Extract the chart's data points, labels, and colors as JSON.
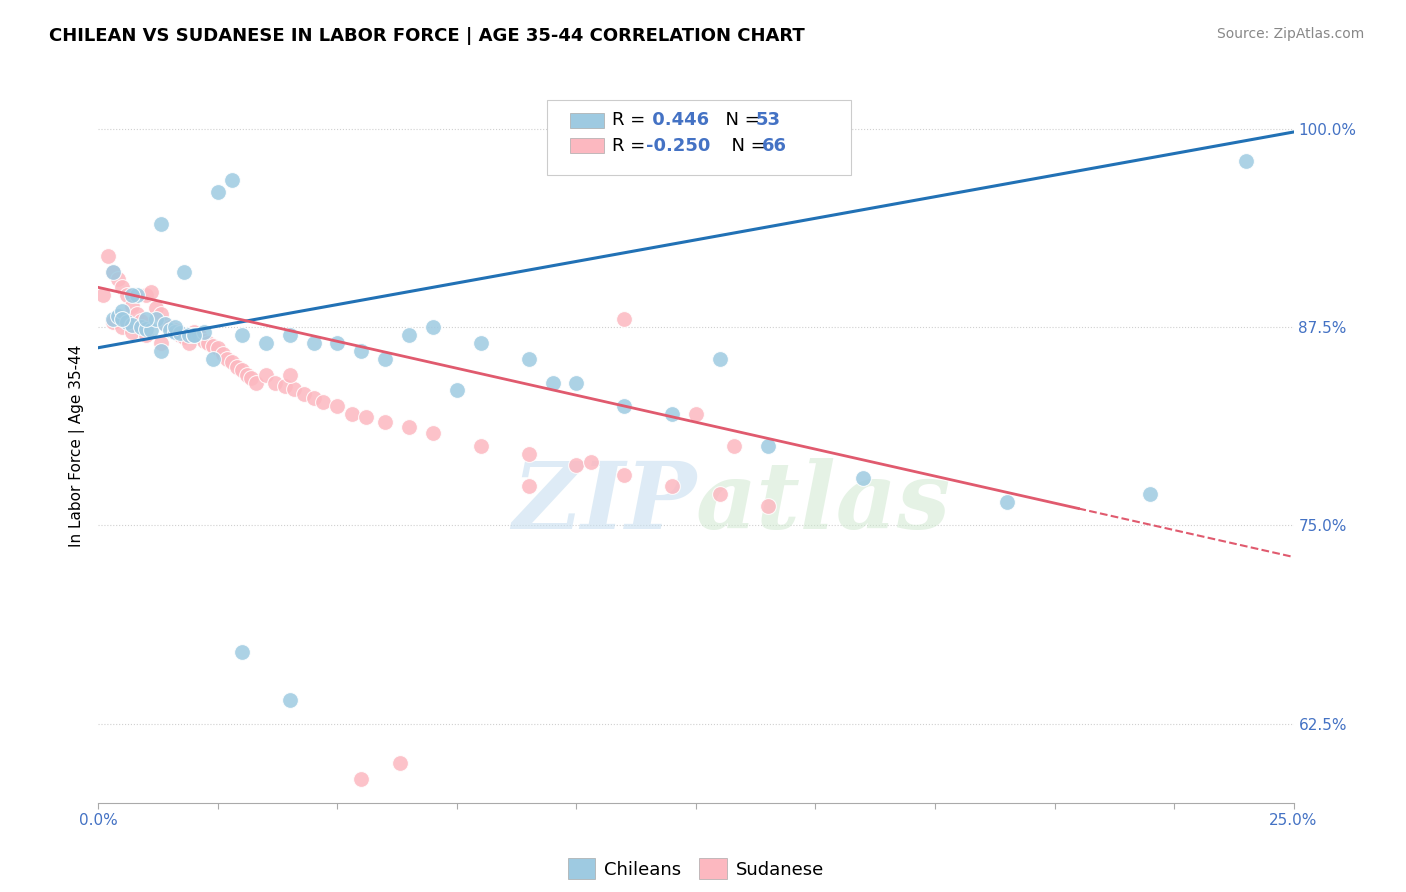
{
  "title": "CHILEAN VS SUDANESE IN LABOR FORCE | AGE 35-44 CORRELATION CHART",
  "source_text": "Source: ZipAtlas.com",
  "ylabel": "In Labor Force | Age 35-44",
  "xlim": [
    0.0,
    0.25
  ],
  "ylim": [
    0.575,
    1.025
  ],
  "xticks": [
    0.0,
    0.025,
    0.05,
    0.075,
    0.1,
    0.125,
    0.15,
    0.175,
    0.2,
    0.225,
    0.25
  ],
  "xticklabels": [
    "0.0%",
    "",
    "",
    "",
    "",
    "",
    "",
    "",
    "",
    "",
    "25.0%"
  ],
  "ytick_positions": [
    0.625,
    0.75,
    0.875,
    1.0
  ],
  "ytick_labels": [
    "62.5%",
    "75.0%",
    "87.5%",
    "100.0%"
  ],
  "blue_color": "#9ecae1",
  "pink_color": "#fcb8c0",
  "trendline_blue": "#2171b5",
  "trendline_pink": "#e05a6e",
  "watermark": "ZIPatlas",
  "blue_scatter_x": [
    0.003,
    0.004,
    0.005,
    0.006,
    0.007,
    0.008,
    0.009,
    0.01,
    0.011,
    0.012,
    0.013,
    0.014,
    0.015,
    0.016,
    0.017,
    0.018,
    0.019,
    0.02,
    0.022,
    0.025,
    0.028,
    0.03,
    0.035,
    0.04,
    0.045,
    0.05,
    0.055,
    0.06,
    0.065,
    0.07,
    0.075,
    0.08,
    0.09,
    0.095,
    0.1,
    0.11,
    0.12,
    0.13,
    0.14,
    0.16,
    0.19,
    0.22,
    0.24,
    0.003,
    0.005,
    0.007,
    0.01,
    0.013,
    0.016,
    0.02,
    0.024,
    0.03,
    0.04
  ],
  "blue_scatter_y": [
    0.88,
    0.882,
    0.885,
    0.878,
    0.876,
    0.895,
    0.875,
    0.874,
    0.873,
    0.88,
    0.94,
    0.877,
    0.873,
    0.872,
    0.871,
    0.91,
    0.87,
    0.87,
    0.872,
    0.96,
    0.968,
    0.87,
    0.865,
    0.87,
    0.865,
    0.865,
    0.86,
    0.855,
    0.87,
    0.875,
    0.835,
    0.865,
    0.855,
    0.84,
    0.84,
    0.825,
    0.82,
    0.855,
    0.8,
    0.78,
    0.765,
    0.77,
    0.98,
    0.91,
    0.88,
    0.895,
    0.88,
    0.86,
    0.875,
    0.87,
    0.855,
    0.67,
    0.64
  ],
  "pink_scatter_x": [
    0.001,
    0.002,
    0.003,
    0.004,
    0.005,
    0.006,
    0.007,
    0.008,
    0.009,
    0.01,
    0.011,
    0.012,
    0.013,
    0.014,
    0.015,
    0.016,
    0.017,
    0.018,
    0.019,
    0.02,
    0.021,
    0.022,
    0.023,
    0.024,
    0.025,
    0.026,
    0.027,
    0.028,
    0.029,
    0.03,
    0.031,
    0.032,
    0.033,
    0.035,
    0.037,
    0.039,
    0.041,
    0.043,
    0.045,
    0.047,
    0.05,
    0.053,
    0.056,
    0.06,
    0.065,
    0.07,
    0.08,
    0.09,
    0.1,
    0.11,
    0.12,
    0.13,
    0.14,
    0.003,
    0.005,
    0.007,
    0.01,
    0.013,
    0.04,
    0.11,
    0.125,
    0.133,
    0.103,
    0.09,
    0.063,
    0.055
  ],
  "pink_scatter_y": [
    0.895,
    0.92,
    0.91,
    0.905,
    0.9,
    0.895,
    0.888,
    0.883,
    0.879,
    0.895,
    0.897,
    0.887,
    0.883,
    0.877,
    0.875,
    0.873,
    0.87,
    0.869,
    0.865,
    0.872,
    0.87,
    0.866,
    0.865,
    0.863,
    0.862,
    0.858,
    0.855,
    0.853,
    0.85,
    0.848,
    0.845,
    0.843,
    0.84,
    0.845,
    0.84,
    0.838,
    0.836,
    0.833,
    0.83,
    0.828,
    0.825,
    0.82,
    0.818,
    0.815,
    0.812,
    0.808,
    0.8,
    0.795,
    0.788,
    0.782,
    0.775,
    0.77,
    0.762,
    0.878,
    0.875,
    0.872,
    0.87,
    0.865,
    0.845,
    0.88,
    0.82,
    0.8,
    0.79,
    0.775,
    0.6,
    0.59
  ],
  "blue_trend_x": [
    0.0,
    0.25
  ],
  "blue_trend_y": [
    0.862,
    0.998
  ],
  "pink_trend_x": [
    0.0,
    0.25
  ],
  "pink_trend_y": [
    0.9,
    0.73
  ],
  "background_color": "#ffffff",
  "grid_color": "#d0d0d0",
  "title_fontsize": 13,
  "axis_label_fontsize": 11,
  "tick_fontsize": 11,
  "legend_fontsize": 13
}
